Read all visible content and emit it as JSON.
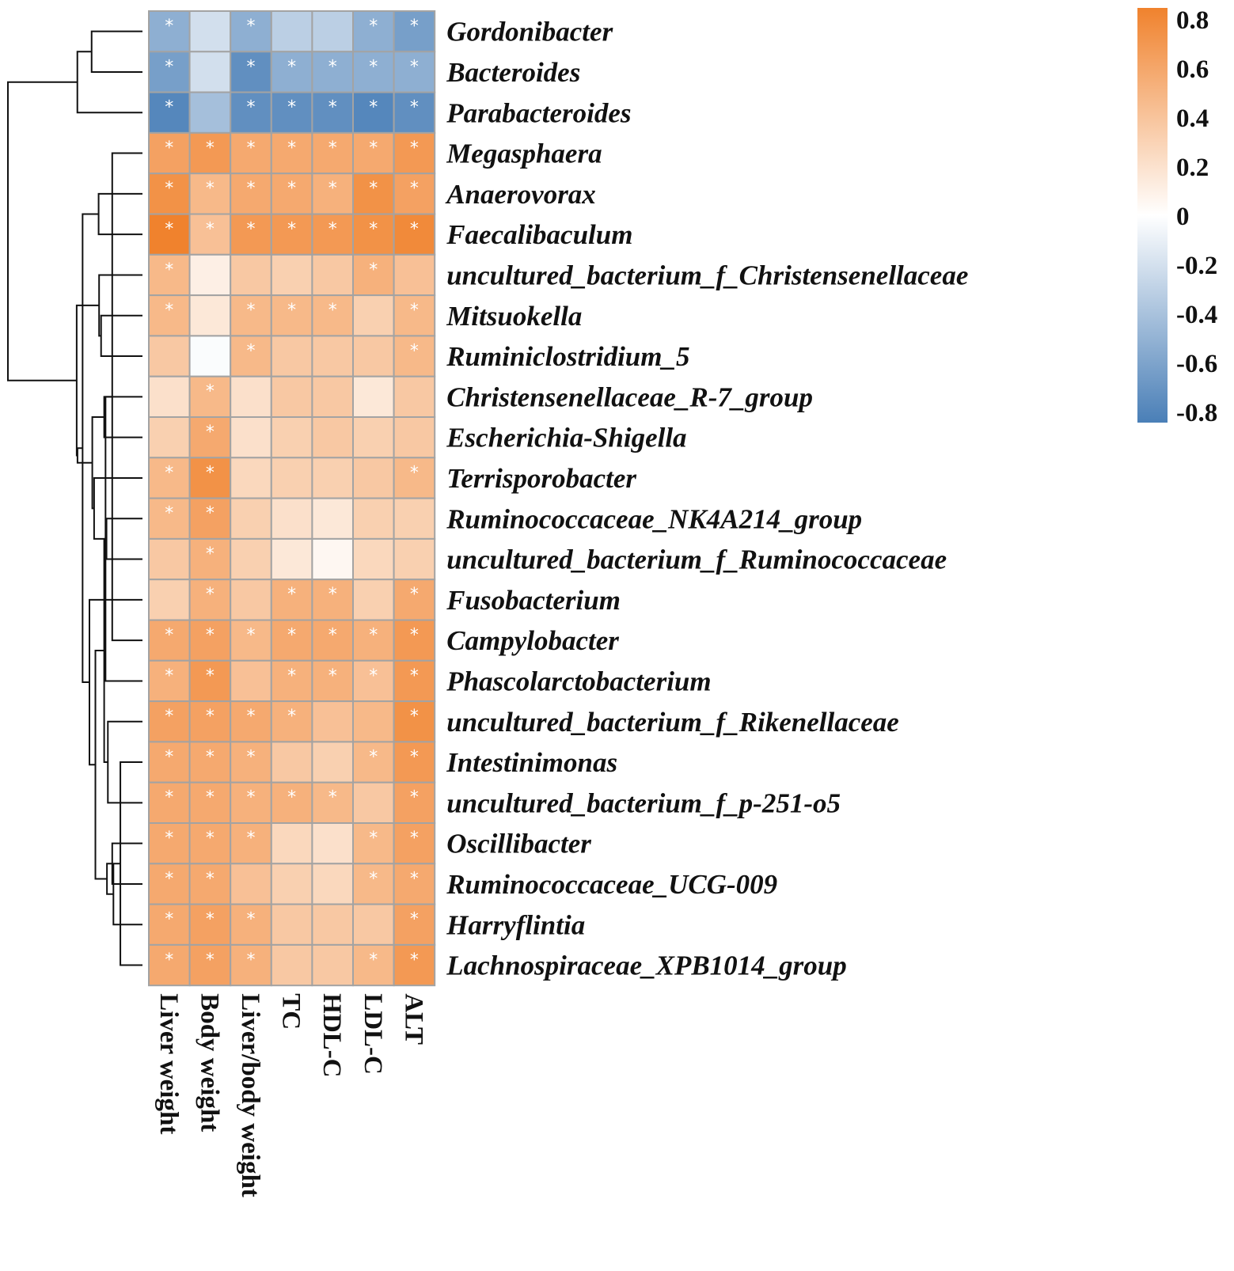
{
  "chart_data": {
    "type": "heatmap",
    "title": "",
    "rows": [
      "Gordonibacter",
      "Bacteroides",
      "Parabacteroides",
      "Megasphaera",
      "Anaerovorax",
      "Faecalibaculum",
      "uncultured_bacterium_f_Christensenellaceae",
      "Mitsuokella",
      "Ruminiclostridium_5",
      "Christensenellaceae_R-7_group",
      "Escherichia-Shigella",
      "Terrisporobacter",
      "Ruminococcaceae_NK4A214_group",
      "uncultured_bacterium_f_Ruminococcaceae",
      "Fusobacterium",
      "Campylobacter",
      "Phascolarctobacterium",
      "uncultured_bacterium_f_Rikenellaceae",
      "Intestinimonas",
      "uncultured_bacterium_f_p-251-o5",
      "Oscillibacter",
      "Ruminococcaceae_UCG-009",
      "Harryflintia",
      "Lachnospiraceae_XPB1014_group"
    ],
    "columns": [
      "Liver weight",
      "Body weight",
      "Liver/body weight",
      "TC",
      "HDL-C",
      "LDL-C",
      "ALT"
    ],
    "values": [
      [
        -0.5,
        -0.2,
        -0.5,
        -0.3,
        -0.3,
        -0.5,
        -0.6
      ],
      [
        -0.6,
        -0.2,
        -0.7,
        -0.5,
        -0.5,
        -0.5,
        -0.5
      ],
      [
        -0.75,
        -0.4,
        -0.7,
        -0.7,
        -0.7,
        -0.75,
        -0.7
      ],
      [
        0.6,
        0.65,
        0.55,
        0.55,
        0.55,
        0.55,
        0.65
      ],
      [
        0.7,
        0.45,
        0.55,
        0.55,
        0.5,
        0.7,
        0.6
      ],
      [
        0.8,
        0.4,
        0.65,
        0.65,
        0.65,
        0.7,
        0.75
      ],
      [
        0.45,
        0.1,
        0.35,
        0.3,
        0.35,
        0.5,
        0.4
      ],
      [
        0.45,
        0.15,
        0.45,
        0.45,
        0.45,
        0.3,
        0.45
      ],
      [
        0.35,
        -0.02,
        0.45,
        0.35,
        0.35,
        0.35,
        0.45
      ],
      [
        0.2,
        0.45,
        0.2,
        0.35,
        0.35,
        0.15,
        0.35
      ],
      [
        0.3,
        0.55,
        0.2,
        0.3,
        0.35,
        0.3,
        0.35
      ],
      [
        0.45,
        0.7,
        0.25,
        0.3,
        0.3,
        0.35,
        0.45
      ],
      [
        0.45,
        0.6,
        0.3,
        0.2,
        0.15,
        0.3,
        0.3
      ],
      [
        0.35,
        0.5,
        0.3,
        0.15,
        0.05,
        0.25,
        0.3
      ],
      [
        0.3,
        0.5,
        0.35,
        0.5,
        0.5,
        0.3,
        0.55
      ],
      [
        0.55,
        0.6,
        0.45,
        0.55,
        0.55,
        0.5,
        0.65
      ],
      [
        0.5,
        0.65,
        0.4,
        0.5,
        0.5,
        0.4,
        0.65
      ],
      [
        0.6,
        0.6,
        0.55,
        0.5,
        0.4,
        0.45,
        0.7
      ],
      [
        0.55,
        0.55,
        0.5,
        0.35,
        0.3,
        0.45,
        0.65
      ],
      [
        0.55,
        0.55,
        0.5,
        0.5,
        0.45,
        0.35,
        0.6
      ],
      [
        0.55,
        0.55,
        0.5,
        0.25,
        0.2,
        0.45,
        0.6
      ],
      [
        0.55,
        0.55,
        0.4,
        0.3,
        0.25,
        0.45,
        0.55
      ],
      [
        0.55,
        0.6,
        0.5,
        0.35,
        0.35,
        0.35,
        0.6
      ],
      [
        0.55,
        0.6,
        0.5,
        0.35,
        0.35,
        0.45,
        0.65
      ]
    ],
    "significant": [
      [
        1,
        0,
        1,
        0,
        0,
        1,
        1
      ],
      [
        1,
        0,
        1,
        1,
        1,
        1,
        1
      ],
      [
        1,
        0,
        1,
        1,
        1,
        1,
        1
      ],
      [
        1,
        1,
        1,
        1,
        1,
        1,
        1
      ],
      [
        1,
        1,
        1,
        1,
        1,
        1,
        1
      ],
      [
        1,
        1,
        1,
        1,
        1,
        1,
        1
      ],
      [
        1,
        0,
        0,
        0,
        0,
        1,
        0
      ],
      [
        1,
        0,
        1,
        1,
        1,
        0,
        1
      ],
      [
        0,
        0,
        1,
        0,
        0,
        0,
        1
      ],
      [
        0,
        1,
        0,
        0,
        0,
        0,
        0
      ],
      [
        0,
        1,
        0,
        0,
        0,
        0,
        0
      ],
      [
        1,
        1,
        0,
        0,
        0,
        0,
        1
      ],
      [
        1,
        1,
        0,
        0,
        0,
        0,
        0
      ],
      [
        0,
        1,
        0,
        0,
        0,
        0,
        0
      ],
      [
        0,
        1,
        0,
        1,
        1,
        0,
        1
      ],
      [
        1,
        1,
        1,
        1,
        1,
        1,
        1
      ],
      [
        1,
        1,
        0,
        1,
        1,
        1,
        1
      ],
      [
        1,
        1,
        1,
        1,
        0,
        0,
        1
      ],
      [
        1,
        1,
        1,
        0,
        0,
        1,
        1
      ],
      [
        1,
        1,
        1,
        1,
        1,
        0,
        1
      ],
      [
        1,
        1,
        1,
        0,
        0,
        1,
        1
      ],
      [
        1,
        1,
        0,
        0,
        0,
        1,
        1
      ],
      [
        1,
        1,
        1,
        0,
        0,
        0,
        1
      ],
      [
        1,
        1,
        1,
        0,
        0,
        1,
        1
      ]
    ],
    "star_symbol": "*",
    "colorscale": {
      "range": [
        -0.8,
        0.8
      ],
      "low_color": "#4a7fb7",
      "mid_color": "#ffffff",
      "high_color": "#f0822d",
      "ticks": [
        "0.8",
        "0.6",
        "0.4",
        "0.2",
        "0",
        "-0.2",
        "-0.4",
        "-0.6",
        "-0.8"
      ]
    },
    "grid_color": "#a3a3a3",
    "dendrogram_color": "#111111",
    "legend_position": "top-right"
  }
}
